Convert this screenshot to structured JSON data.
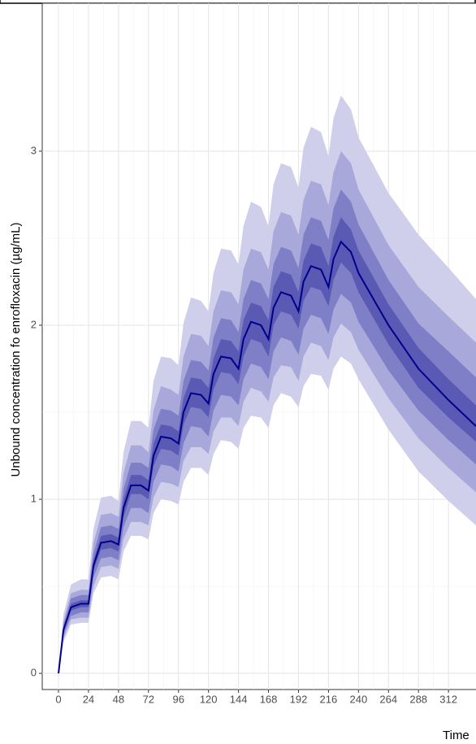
{
  "chart_data": {
    "type": "band-line",
    "y_label": "Unbound concentration fo enrofloxacin (µg/mL)",
    "x_label": "Time",
    "x": [
      0,
      4,
      10,
      18,
      24,
      28,
      34,
      42,
      48,
      52,
      58,
      66,
      72,
      76,
      82,
      90,
      96,
      100,
      106,
      114,
      120,
      124,
      130,
      138,
      144,
      148,
      154,
      162,
      168,
      172,
      178,
      186,
      192,
      196,
      202,
      210,
      216,
      220,
      226,
      234,
      240,
      264,
      288,
      312,
      334
    ],
    "values": [
      0,
      0.25,
      0.38,
      0.4,
      0.4,
      0.62,
      0.75,
      0.76,
      0.74,
      0.95,
      1.08,
      1.08,
      1.05,
      1.25,
      1.36,
      1.35,
      1.32,
      1.5,
      1.61,
      1.6,
      1.55,
      1.72,
      1.82,
      1.81,
      1.75,
      1.92,
      2.02,
      2.0,
      1.92,
      2.1,
      2.19,
      2.17,
      2.08,
      2.25,
      2.34,
      2.32,
      2.22,
      2.38,
      2.48,
      2.42,
      2.3,
      2.0,
      1.75,
      1.57,
      1.42
    ],
    "color": "#00008b",
    "bands": [
      {
        "color": "#cfcfeb",
        "low": [
          0,
          0.18,
          0.28,
          0.29,
          0.29,
          0.46,
          0.55,
          0.56,
          0.54,
          0.7,
          0.79,
          0.79,
          0.77,
          0.92,
          1.0,
          0.99,
          0.97,
          1.1,
          1.18,
          1.18,
          1.14,
          1.26,
          1.34,
          1.33,
          1.29,
          1.41,
          1.48,
          1.47,
          1.41,
          1.54,
          1.61,
          1.59,
          1.53,
          1.65,
          1.72,
          1.71,
          1.63,
          1.75,
          1.82,
          1.78,
          1.69,
          1.4,
          1.16,
          0.99,
          0.85
        ],
        "high": [
          0,
          0.34,
          0.51,
          0.54,
          0.54,
          0.83,
          1.01,
          1.02,
          0.99,
          1.27,
          1.45,
          1.45,
          1.41,
          1.68,
          1.82,
          1.81,
          1.77,
          2.01,
          2.16,
          2.14,
          2.08,
          2.3,
          2.44,
          2.43,
          2.35,
          2.57,
          2.71,
          2.68,
          2.57,
          2.81,
          2.93,
          2.91,
          2.79,
          3.02,
          3.14,
          3.11,
          2.97,
          3.19,
          3.32,
          3.24,
          3.08,
          2.76,
          2.52,
          2.33,
          2.15
        ]
      },
      {
        "color": "#a8a8da",
        "low": [
          0,
          0.2,
          0.31,
          0.32,
          0.32,
          0.5,
          0.61,
          0.62,
          0.6,
          0.77,
          0.87,
          0.87,
          0.85,
          1.01,
          1.1,
          1.09,
          1.07,
          1.22,
          1.3,
          1.3,
          1.26,
          1.39,
          1.47,
          1.47,
          1.42,
          1.56,
          1.64,
          1.62,
          1.56,
          1.7,
          1.77,
          1.76,
          1.68,
          1.82,
          1.9,
          1.88,
          1.8,
          1.93,
          2.01,
          1.96,
          1.86,
          1.58,
          1.35,
          1.18,
          1.04
        ],
        "high": [
          0,
          0.3,
          0.46,
          0.48,
          0.48,
          0.75,
          0.91,
          0.92,
          0.9,
          1.15,
          1.31,
          1.31,
          1.27,
          1.51,
          1.65,
          1.63,
          1.6,
          1.82,
          1.95,
          1.94,
          1.88,
          2.08,
          2.2,
          2.19,
          2.12,
          2.32,
          2.44,
          2.42,
          2.32,
          2.54,
          2.65,
          2.63,
          2.52,
          2.72,
          2.83,
          2.81,
          2.69,
          2.88,
          3.0,
          2.93,
          2.78,
          2.46,
          2.22,
          2.05,
          1.9
        ]
      },
      {
        "color": "#7f7fc8",
        "low": [
          0,
          0.22,
          0.33,
          0.35,
          0.35,
          0.55,
          0.66,
          0.67,
          0.65,
          0.84,
          0.95,
          0.95,
          0.92,
          1.1,
          1.2,
          1.19,
          1.16,
          1.32,
          1.42,
          1.41,
          1.36,
          1.51,
          1.6,
          1.59,
          1.54,
          1.69,
          1.78,
          1.76,
          1.69,
          1.85,
          1.93,
          1.91,
          1.83,
          1.98,
          2.06,
          2.04,
          1.95,
          2.09,
          2.18,
          2.13,
          2.02,
          1.74,
          1.51,
          1.34,
          1.2
        ],
        "high": [
          0,
          0.28,
          0.43,
          0.45,
          0.45,
          0.69,
          0.84,
          0.85,
          0.83,
          1.06,
          1.21,
          1.21,
          1.18,
          1.4,
          1.52,
          1.51,
          1.48,
          1.68,
          1.8,
          1.79,
          1.74,
          1.93,
          2.04,
          2.03,
          1.96,
          2.15,
          2.26,
          2.24,
          2.15,
          2.35,
          2.45,
          2.43,
          2.33,
          2.52,
          2.62,
          2.6,
          2.49,
          2.67,
          2.78,
          2.71,
          2.58,
          2.26,
          2.01,
          1.85,
          1.7
        ]
      },
      {
        "color": "#5a5ab4",
        "low": [
          0,
          0.24,
          0.36,
          0.38,
          0.38,
          0.59,
          0.71,
          0.72,
          0.7,
          0.9,
          1.03,
          1.03,
          1.0,
          1.19,
          1.29,
          1.28,
          1.25,
          1.43,
          1.53,
          1.52,
          1.47,
          1.63,
          1.73,
          1.72,
          1.66,
          1.82,
          1.92,
          1.9,
          1.82,
          2.0,
          2.08,
          2.06,
          1.98,
          2.14,
          2.22,
          2.2,
          2.11,
          2.26,
          2.36,
          2.3,
          2.19,
          1.89,
          1.64,
          1.47,
          1.33
        ],
        "high": [
          0,
          0.26,
          0.4,
          0.42,
          0.42,
          0.65,
          0.79,
          0.8,
          0.78,
          1.0,
          1.14,
          1.14,
          1.11,
          1.32,
          1.43,
          1.42,
          1.39,
          1.58,
          1.7,
          1.69,
          1.64,
          1.81,
          1.92,
          1.91,
          1.85,
          2.03,
          2.13,
          2.11,
          2.03,
          2.22,
          2.31,
          2.29,
          2.19,
          2.37,
          2.47,
          2.45,
          2.34,
          2.51,
          2.62,
          2.55,
          2.43,
          2.12,
          1.87,
          1.69,
          1.54
        ]
      }
    ],
    "xlim": [
      -13,
      334
    ],
    "ylim": [
      -0.093,
      3.85
    ],
    "xticks": [
      0,
      24,
      48,
      72,
      96,
      120,
      144,
      168,
      192,
      216,
      240,
      264,
      288,
      312
    ],
    "yticks": [
      0,
      1,
      2,
      3
    ],
    "grid": true
  }
}
